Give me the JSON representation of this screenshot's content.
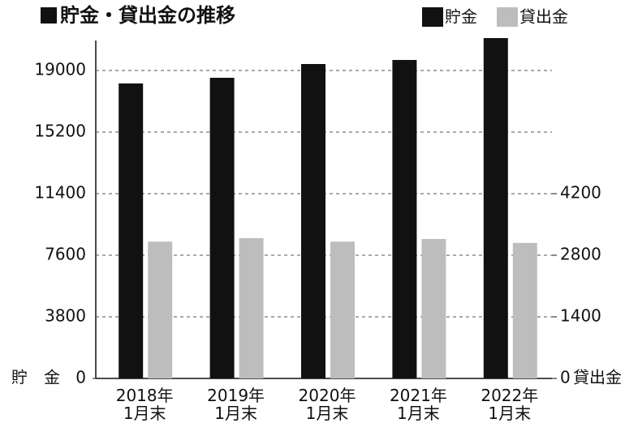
{
  "chart_data": {
    "type": "bar",
    "title": "貯金・貸出金の推移",
    "categories": [
      "2018年\n1月末",
      "2019年\n1月末",
      "2020年\n1月末",
      "2021年\n1月末",
      "2022年\n1月末"
    ],
    "series": [
      {
        "name": "貯金",
        "color": "#111111",
        "values": [
          18200,
          18550,
          19400,
          19650,
          21000
        ]
      },
      {
        "name": "貸出金",
        "color": "#bdbdbd",
        "values": [
          3110,
          3190,
          3110,
          3170,
          3080
        ],
        "axis": "y2"
      }
    ],
    "ylim": [
      0,
      21000
    ],
    "yticks": [
      0,
      3800,
      7600,
      11400,
      15200,
      19000
    ],
    "y2lim": [
      0,
      7737
    ],
    "y2ticks": [
      0,
      1400,
      2800,
      4200
    ],
    "y_label": "貯　金",
    "y2_label": "貸出金",
    "grid": true
  }
}
